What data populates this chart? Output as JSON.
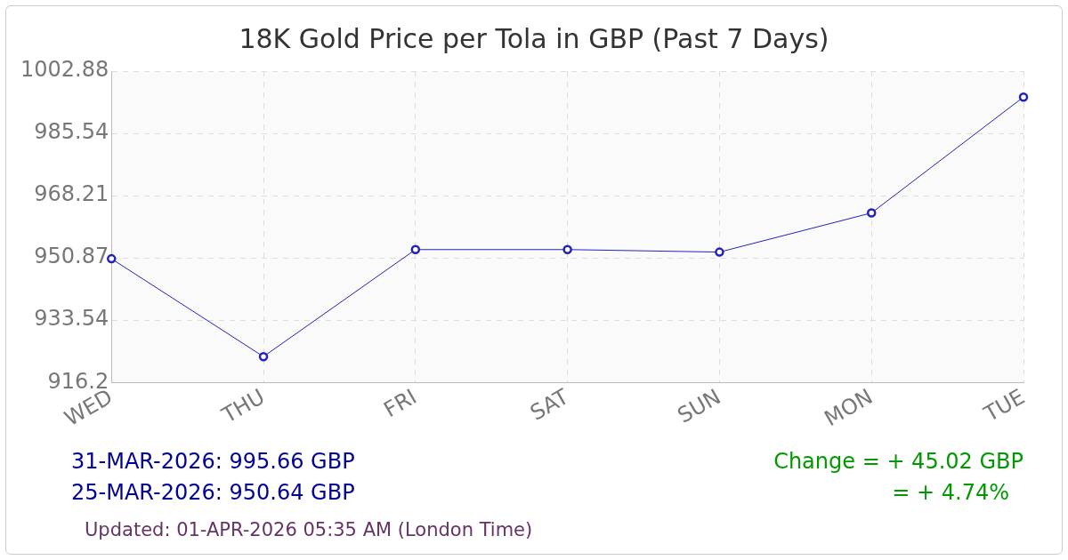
{
  "chart_data": {
    "type": "line",
    "title": "18K Gold Price per Tola in GBP (Past 7 Days)",
    "categories": [
      "WED",
      "THU",
      "FRI",
      "SAT",
      "SUN",
      "MON",
      "TUE"
    ],
    "series": [
      {
        "color": "#2222bb",
        "values": [
          950.64,
          923.4,
          953.2,
          953.2,
          952.5,
          963.4,
          995.66
        ]
      }
    ],
    "ylim": [
      916.2,
      1002.88
    ],
    "yticks": [
      916.2,
      933.54,
      950.87,
      968.21,
      985.54,
      1002.88
    ],
    "grid": true,
    "legend": false,
    "marker": "circle",
    "line_style": "solid",
    "annotations": [
      "31-MAR-2026: 995.66 GBP",
      "25-MAR-2026: 950.64 GBP",
      "Change = + 45.02 GBP",
      "= + 4.74%",
      "Updated: 01-APR-2026 05:35 AM (London Time)"
    ]
  }
}
